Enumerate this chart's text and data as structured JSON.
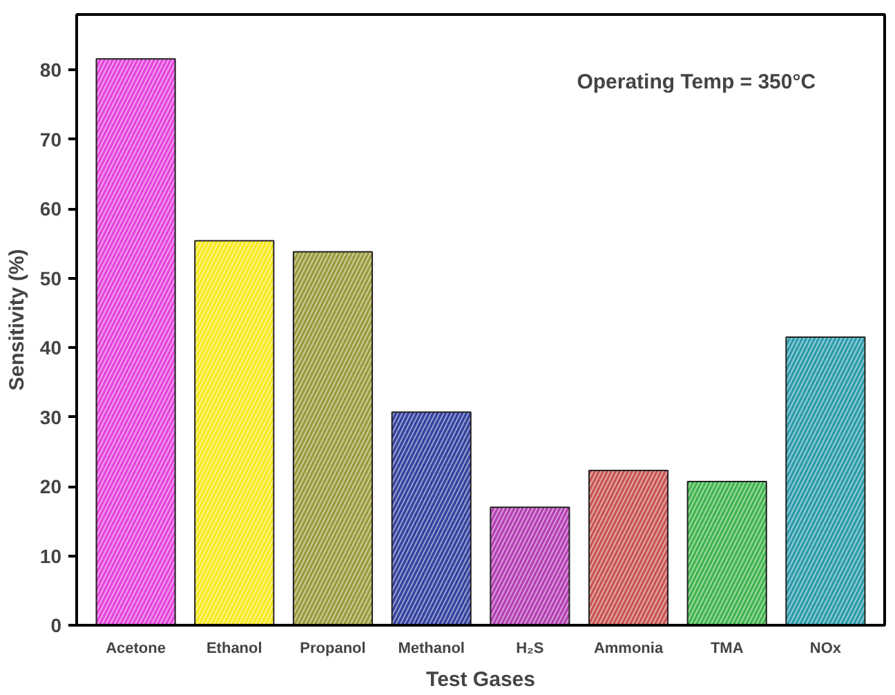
{
  "chart_data": {
    "type": "bar",
    "xlabel": "Test Gases",
    "ylabel": "Sensitivity (%)",
    "categories": [
      "Acetone",
      "Ethanol",
      "Propanol",
      "Methanol",
      "H₂S",
      "Ammonia",
      "TMA",
      "NOx"
    ],
    "values": [
      81.6,
      55.4,
      53.8,
      30.7,
      17.0,
      22.3,
      20.7,
      41.5
    ],
    "colors": [
      "#e444dc",
      "#f8e81c",
      "#9c9a3c",
      "#3442a0",
      "#b440b4",
      "#c85450",
      "#40b44c",
      "#2c9cac"
    ],
    "ylim": [
      0,
      88
    ],
    "yticks": [
      0,
      10,
      20,
      30,
      40,
      50,
      60,
      70,
      80
    ],
    "grid": false,
    "annotations": [
      "Operating Temp = 350°C"
    ]
  }
}
